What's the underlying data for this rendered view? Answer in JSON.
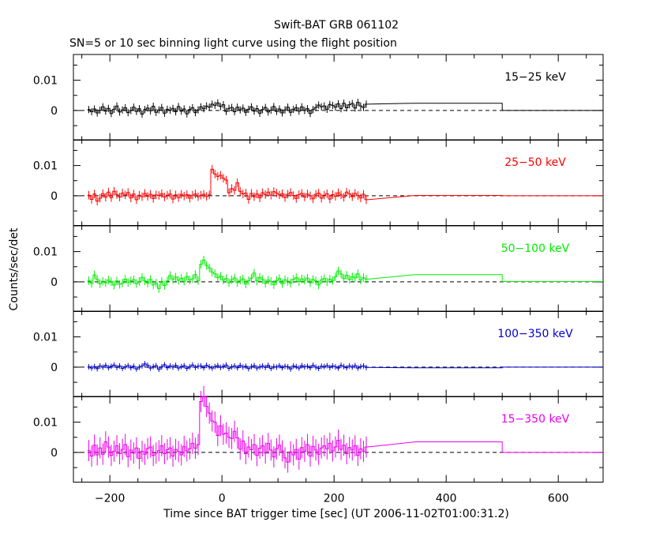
{
  "title": "Swift-BAT GRB 061102",
  "subtitle": "SN=5 or 10 sec binning light curve using the flight position",
  "ylabel": "Counts/sec/det",
  "xlabel": "Time since BAT trigger time [sec] (UT 2006-11-02T01:00:31.2)",
  "chart_data": {
    "type": "line",
    "xlim": [
      -265,
      680
    ],
    "x_ticks": [
      -200,
      0,
      200,
      400,
      600
    ],
    "x_tick_labels": [
      "−200",
      "0",
      "200",
      "400",
      "600"
    ],
    "ylim": [
      -0.0098,
      0.0185
    ],
    "y_ticks": [
      0,
      0.01
    ],
    "y_tick_labels": [
      "0",
      "0.01"
    ],
    "tail_bins": [
      [
        345,
        500
      ],
      [
        500,
        680
      ]
    ],
    "bin_width": 5,
    "panels": [
      {
        "label": "15−25 keV",
        "color": "#000000",
        "err": 0.0012,
        "tail_values": [
          0.0024,
          0.0
        ],
        "values": [
          0.0003,
          -0.0004,
          0.0005,
          -0.0008,
          0.0001,
          0.0012,
          -0.0002,
          0.0007,
          -0.001,
          0.0004,
          0.0015,
          -0.0005,
          0.0002,
          0.0009,
          -0.0007,
          0.0,
          0.0011,
          -0.0003,
          0.0006,
          -0.0012,
          0.0003,
          0.0008,
          -0.0001,
          0.0014,
          -0.0006,
          0.0002,
          0.001,
          -0.0009,
          0.0004,
          0.0001,
          0.0007,
          -0.0004,
          0.0013,
          -0.0002,
          0.0005,
          -0.0011,
          0.0003,
          0.0009,
          -0.0007,
          0.0002,
          0.0012,
          0.0006,
          0.0015,
          0.0011,
          0.0021,
          0.0017,
          0.0025,
          0.0013,
          0.0019,
          -0.0003,
          0.0007,
          0.001,
          -0.0004,
          0.0011,
          0.0002,
          0.0008,
          -0.0006,
          0.0004,
          0.0012,
          -0.0002,
          0.0006,
          -0.0009,
          0.0003,
          0.001,
          -0.0005,
          0.0001,
          0.0013,
          -0.0003,
          0.0005,
          -0.0008,
          0.0002,
          0.0011,
          -0.0006,
          0.0004,
          0.0009,
          -0.0002,
          0.0012,
          0.0,
          0.0006,
          -0.001,
          0.0003,
          0.001,
          0.0018,
          0.0012,
          0.0015,
          0.0004,
          0.002,
          0.0017,
          0.0011,
          0.0022,
          0.0006,
          0.0024,
          0.0009,
          0.0019,
          0.0023,
          0.0008,
          0.0027,
          0.0015,
          0.001,
          0.0021
        ]
      },
      {
        "label": "25−50 keV",
        "color": "#ff0000",
        "err": 0.0014,
        "tail_values": [
          0.0001,
          0.0
        ],
        "values": [
          0.0002,
          -0.0012,
          0.0006,
          -0.0018,
          -0.0008,
          0.0007,
          -0.0005,
          0.0012,
          -0.0006,
          0.0015,
          0.0004,
          -0.0004,
          0.0009,
          0.0003,
          0.0011,
          -0.0007,
          0.0006,
          -0.0013,
          0.0002,
          -0.0003,
          0.0008,
          -0.0002,
          0.0005,
          -0.0009,
          0.0003,
          0.0001,
          0.0007,
          -0.0004,
          0.0002,
          0.0006,
          -0.0011,
          0.0003,
          -0.0006,
          0.0005,
          -0.0001,
          0.0004,
          -0.0008,
          0.0002,
          0.0006,
          -0.0003,
          0.0002,
          0.0005,
          -0.0002,
          0.0003,
          0.0088,
          0.0072,
          0.0064,
          0.0068,
          0.0058,
          0.0052,
          0.001,
          0.0024,
          0.0018,
          0.0043,
          0.0015,
          0.0006,
          0.0009,
          -0.0012,
          0.0008,
          -0.0003,
          0.0006,
          -0.0007,
          0.001,
          0.0004,
          0.0012,
          0.0002,
          0.0014,
          0.0009,
          0.0003,
          0.0007,
          -0.0006,
          0.0005,
          0.0011,
          0.0001,
          -0.0009,
          0.0004,
          0.0008,
          -0.0004,
          0.0006,
          0.0,
          -0.001,
          0.0005,
          0.0009,
          -0.0008,
          0.0002,
          0.0007,
          -0.0011,
          0.0004,
          -0.0002,
          0.001,
          0.0003,
          -0.0005,
          0.0012,
          0.0006,
          -0.0003,
          0.0008,
          0.0001,
          -0.0007,
          0.0005,
          -0.0013
        ]
      },
      {
        "label": "50−100 keV",
        "color": "#00ee00",
        "err": 0.0014,
        "tail_values": [
          0.0024,
          0.0001
        ],
        "values": [
          0.0004,
          -0.0005,
          0.0023,
          0.0008,
          -0.0006,
          0.0002,
          -0.0003,
          0.0006,
          0.0001,
          -0.0011,
          0.0003,
          -0.0008,
          -0.0004,
          0.0009,
          -0.0002,
          0.0004,
          0.0007,
          -0.0006,
          0.0001,
          0.0015,
          0.0003,
          -0.0004,
          0.0008,
          -0.001,
          -0.0004,
          -0.0022,
          0.0002,
          -0.0012,
          0.0003,
          0.0021,
          0.0008,
          0.0016,
          0.0005,
          0.0012,
          0.0002,
          0.0018,
          0.0006,
          0.001,
          0.0024,
          0.0004,
          0.0058,
          0.0072,
          0.0054,
          0.0046,
          0.0032,
          0.0027,
          0.0014,
          0.0019,
          0.0006,
          0.0011,
          -0.0003,
          0.0007,
          0.0013,
          -0.0002,
          0.0005,
          0.001,
          -0.0007,
          0.0004,
          0.0012,
          0.0029,
          0.0003,
          0.0015,
          0.0008,
          -0.0005,
          0.0006,
          0.0002,
          -0.0009,
          0.0004,
          0.0011,
          -0.0006,
          0.0007,
          0.0002,
          -0.0004,
          0.0009,
          0.0014,
          0.0001,
          0.001,
          0.0005,
          0.0012,
          -0.0003,
          0.0008,
          0.0003,
          -0.001,
          0.0006,
          0.0011,
          0.0,
          0.0009,
          0.0004,
          0.0017,
          0.0036,
          0.0026,
          0.0011,
          0.0022,
          0.0008,
          0.0017,
          0.0013,
          0.0027,
          0.0006,
          0.0014,
          0.0009
        ]
      },
      {
        "label": "100−350 keV",
        "color": "#0000cc",
        "err": 0.0009,
        "tail_values": [
          -0.0002,
          0.0
        ],
        "values": [
          0.0001,
          -0.0003,
          0.0002,
          -0.0005,
          0.0004,
          0.0,
          0.0006,
          -0.0002,
          0.0003,
          0.0007,
          -0.0001,
          0.0004,
          -0.0004,
          0.0001,
          0.0005,
          -0.0002,
          0.0003,
          -0.0006,
          0.0,
          0.0004,
          0.0011,
          0.0006,
          -0.0003,
          0.0002,
          0.0005,
          -0.0007,
          0.0001,
          0.0008,
          -0.0002,
          0.0004,
          0.0,
          0.0006,
          -0.0003,
          0.0002,
          0.0005,
          -0.0004,
          0.0001,
          0.0007,
          -0.0001,
          0.0003,
          0.0004,
          -0.0002,
          0.0006,
          0.0001,
          -0.0003,
          0.0002,
          0.0005,
          -0.0001,
          0.0003,
          0.0007,
          -0.0004,
          0.0001,
          0.0004,
          -0.0002,
          0.0006,
          0.0,
          0.0003,
          -0.0005,
          0.0002,
          0.0005,
          -0.0003,
          0.0001,
          0.0004,
          -0.0001,
          0.0006,
          -0.0004,
          0.0002,
          0.0,
          0.0005,
          -0.0002,
          0.0003,
          0.0001,
          -0.0006,
          0.0004,
          0.0002,
          -0.0003,
          0.0005,
          0.0001,
          0.0003,
          -0.0002,
          0.0006,
          0.0,
          -0.0004,
          0.0003,
          0.0002,
          0.0005,
          -0.0001,
          0.0004,
          0.0001,
          -0.0003,
          0.0006,
          0.0002,
          -0.0002,
          0.0004,
          0.0,
          0.0005,
          -0.0003,
          0.0002,
          0.0004,
          -0.0001
        ]
      },
      {
        "label": "15−350 keV",
        "color": "#ee00ee",
        "err": 0.0035,
        "tail_values": [
          0.0035,
          0.0
        ],
        "values": [
          0.0006,
          -0.0012,
          0.0024,
          -0.0008,
          0.0015,
          -0.0006,
          0.0035,
          0.0018,
          -0.001,
          0.0004,
          0.0022,
          -0.0004,
          0.001,
          0.0026,
          -0.0014,
          0.0008,
          -0.0002,
          0.0015,
          -0.002,
          0.0004,
          -0.0006,
          0.0013,
          0.0018,
          -0.001,
          -0.0002,
          0.0006,
          0.0022,
          -0.0004,
          0.0009,
          0.0015,
          -0.0012,
          0.001,
          0.0003,
          -0.0008,
          0.002,
          0.0005,
          0.0012,
          0.003,
          0.0014,
          0.0026,
          0.0168,
          0.0185,
          0.0152,
          0.013,
          0.0104,
          0.01,
          0.0056,
          0.0088,
          0.006,
          0.0064,
          0.005,
          0.0046,
          0.007,
          0.0048,
          0.0011,
          0.0038,
          -0.0004,
          0.0018,
          0.0009,
          0.0026,
          -0.001,
          0.0014,
          0.0022,
          -0.0002,
          0.003,
          0.0008,
          -0.0015,
          0.0012,
          0.0024,
          0.0005,
          -0.0018,
          -0.0032,
          0.0002,
          -0.0008,
          0.001,
          -0.0022,
          0.0016,
          0.0004,
          0.0026,
          -0.0012,
          0.002,
          0.0008,
          -0.0006,
          0.0015,
          0.0022,
          0.0012,
          0.003,
          0.0005,
          0.0018,
          0.004,
          0.001,
          0.0024,
          -0.0004,
          0.0016,
          0.0008,
          0.0022,
          -0.001,
          0.0012,
          0.0004,
          0.0018
        ]
      }
    ]
  }
}
